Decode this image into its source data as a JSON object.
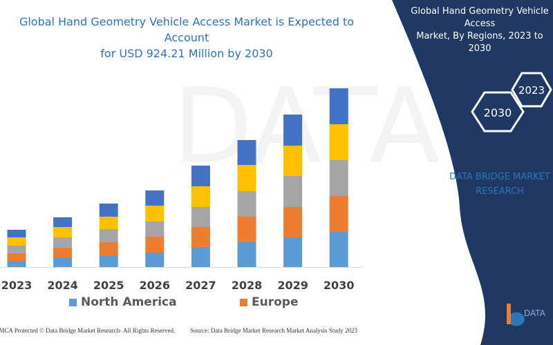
{
  "title": {
    "line1": "Global Hand Geometry Vehicle Access Market is Expected to Account",
    "line2": "for USD 924.21 Million by 2030"
  },
  "side_panel": {
    "title_line1": "Global Hand Geometry Vehicle Access",
    "title_line2": "Market, By Regions, 2023 to 2030",
    "hex_years": [
      "2030",
      "2023"
    ],
    "brand_line1": "DATA BRIDGE MARKET",
    "brand_line2": "RESEARCH",
    "logo_text": "DATA BRIDGE MARKET RESEARCH",
    "color": "#1f3864"
  },
  "chart_data": {
    "type": "bar",
    "stacked": true,
    "title": "Global Hand Geometry Vehicle Access Market is Expected to Account for USD 924.21 Million by 2030",
    "categories": [
      "2023",
      "2024",
      "2025",
      "2026",
      "2027",
      "2028",
      "2029",
      "2030"
    ],
    "series": [
      {
        "name": "North America",
        "color": "#5b9bd5",
        "values": [
          9,
          13,
          17,
          21,
          28,
          36,
          43,
          51
        ]
      },
      {
        "name": "Europe",
        "color": "#ed7d31",
        "values": [
          11,
          15,
          19,
          23,
          30,
          37,
          44,
          52
        ]
      },
      {
        "color": "#a5a5a5",
        "values": [
          11,
          15,
          19,
          22,
          29,
          37,
          45,
          52
        ]
      },
      {
        "color": "#ffc000",
        "values": [
          12,
          15,
          18,
          23,
          30,
          38,
          44,
          52
        ]
      },
      {
        "color": "#4472c4",
        "values": [
          11,
          14,
          19,
          22,
          30,
          36,
          45,
          52
        ]
      }
    ],
    "y_axis_visible": false,
    "grid": false,
    "legend_placement": "bottom",
    "ylim": [
      0,
      260
    ]
  },
  "footer": {
    "copyright": "DMCA Protected © Data Bridge Market Research- All Rights Reserved.",
    "source": "Source: Data Bridge Market Research Market Analysis Study 2023"
  }
}
